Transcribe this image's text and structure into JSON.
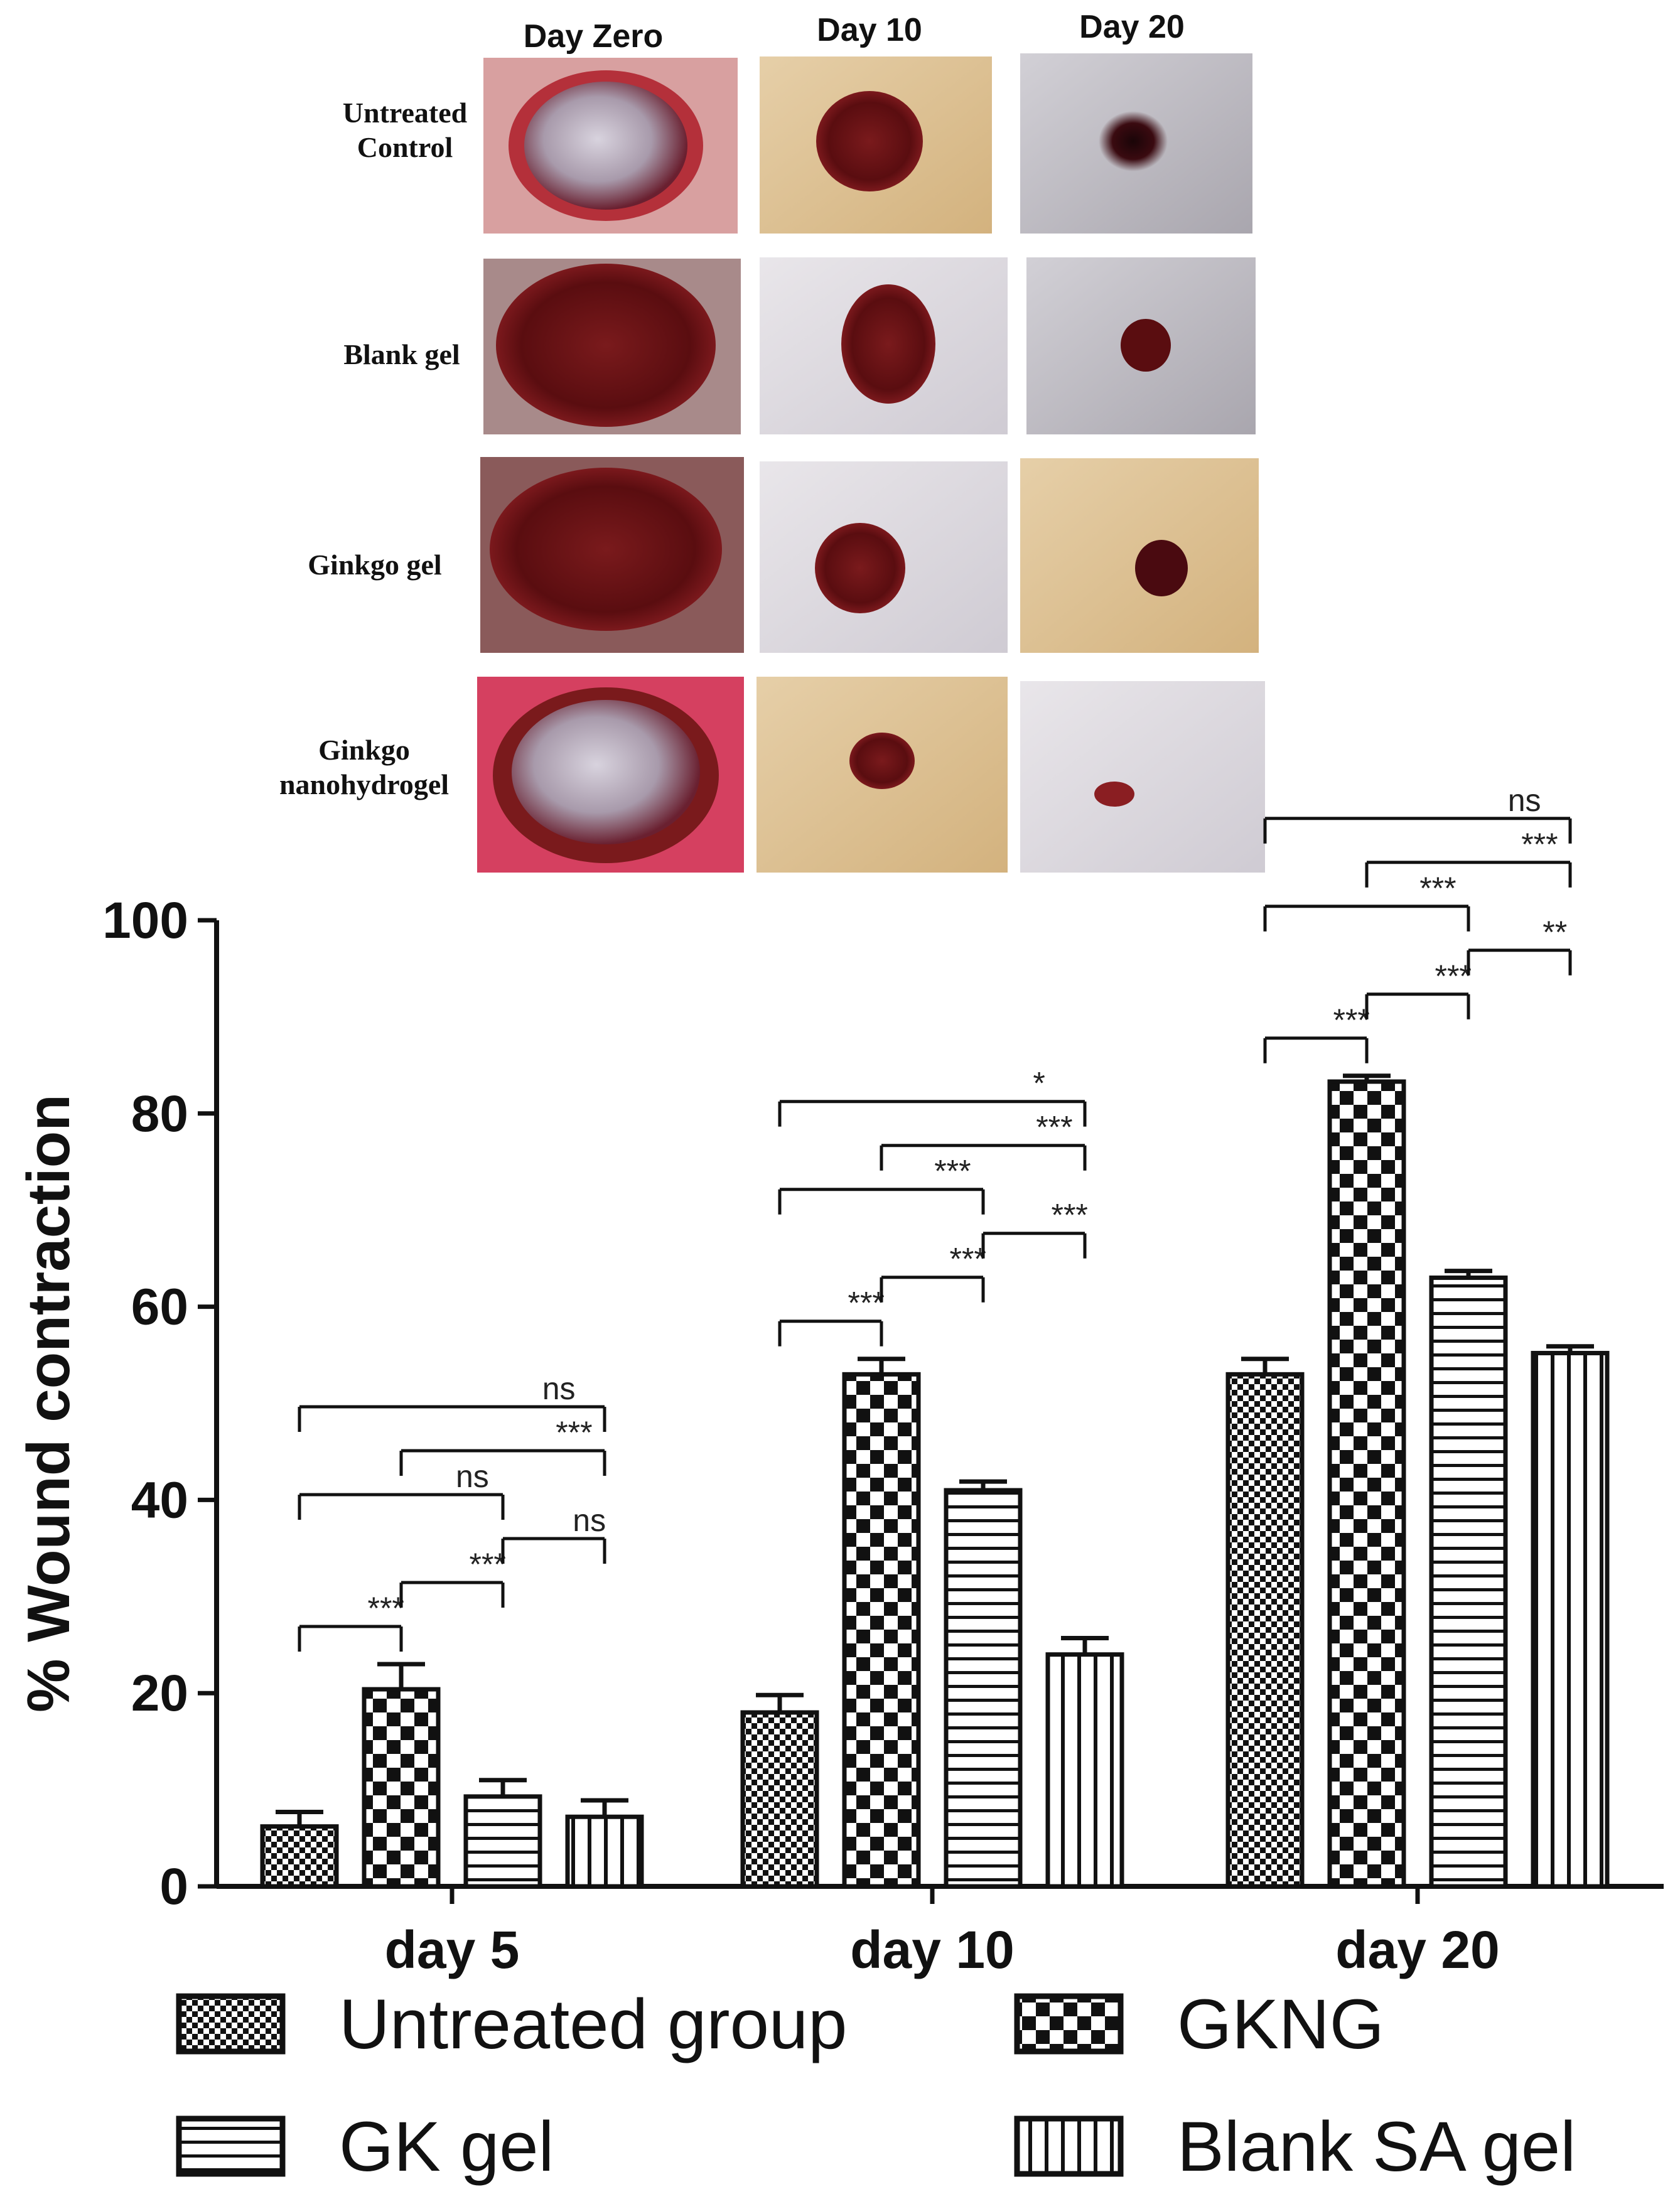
{
  "photo_panel": {
    "column_headers": [
      "Day Zero",
      "Day 10",
      "Day 20"
    ],
    "row_labels": [
      [
        "Untreated",
        "Control"
      ],
      [
        "Blank gel"
      ],
      [
        "Ginkgo gel"
      ],
      [
        "Ginkgo",
        "nanohydrogel"
      ]
    ]
  },
  "chart_data": {
    "type": "bar",
    "categories": [
      "day 5",
      "day 10",
      "day 20"
    ],
    "ylabel": "% Wound contraction",
    "xlabel": "",
    "ylim": [
      0,
      100
    ],
    "yticks": [
      0,
      20,
      40,
      60,
      80,
      100
    ],
    "series": [
      {
        "name": "Untreated group",
        "pattern": "fine-checker",
        "values": [
          6.2,
          18.0,
          53.0
        ],
        "errors": [
          1.5,
          1.8,
          1.6
        ]
      },
      {
        "name": "GKNG",
        "pattern": "large-checker",
        "values": [
          20.4,
          53.0,
          83.3
        ],
        "errors": [
          2.6,
          1.6,
          0.6
        ]
      },
      {
        "name": "GK gel",
        "pattern": "horizontal-stripes",
        "values": [
          9.3,
          41.0,
          63.0
        ],
        "errors": [
          1.7,
          0.9,
          0.7
        ]
      },
      {
        "name": "Blank SA gel",
        "pattern": "vertical-stripes",
        "values": [
          7.2,
          24.0,
          55.2
        ],
        "errors": [
          1.7,
          1.7,
          0.7
        ]
      }
    ],
    "legend": {
      "placement": "bottom",
      "entries": [
        "Untreated group",
        "GKNG",
        "GK gel",
        "Blank SA gel"
      ]
    },
    "significance": [
      {
        "category": "day 5",
        "from": "Untreated group",
        "to": "Blank SA gel",
        "label": "ns"
      },
      {
        "category": "day 5",
        "from": "Untreated group",
        "to": "GK gel",
        "label": "ns"
      },
      {
        "category": "day 5",
        "from": "GKNG",
        "to": "Blank SA gel",
        "label": "***"
      },
      {
        "category": "day 5",
        "from": "Untreated group",
        "to": "GKNG",
        "label": "***"
      },
      {
        "category": "day 5",
        "from": "GKNG",
        "to": "GK gel",
        "label": "***"
      },
      {
        "category": "day 5",
        "from": "GK gel",
        "to": "Blank SA gel",
        "label": "ns"
      },
      {
        "category": "day 10",
        "from": "Untreated group",
        "to": "Blank SA gel",
        "label": "*"
      },
      {
        "category": "day 10",
        "from": "Untreated group",
        "to": "GK gel",
        "label": "***"
      },
      {
        "category": "day 10",
        "from": "GKNG",
        "to": "Blank SA gel",
        "label": "***"
      },
      {
        "category": "day 10",
        "from": "Untreated group",
        "to": "GKNG",
        "label": "***"
      },
      {
        "category": "day 10",
        "from": "GKNG",
        "to": "GK gel",
        "label": "***"
      },
      {
        "category": "day 10",
        "from": "GK gel",
        "to": "Blank SA gel",
        "label": "***"
      },
      {
        "category": "day 20",
        "from": "Untreated group",
        "to": "Blank SA gel",
        "label": "ns"
      },
      {
        "category": "day 20",
        "from": "Untreated group",
        "to": "GK gel",
        "label": "***"
      },
      {
        "category": "day 20",
        "from": "Untreated group",
        "to": "GKNG",
        "label": "***"
      },
      {
        "category": "day 20",
        "from": "GKNG",
        "to": "Blank SA gel",
        "label": "***"
      },
      {
        "category": "day 20",
        "from": "GKNG",
        "to": "GK gel",
        "label": "***"
      },
      {
        "category": "day 20",
        "from": "GK gel",
        "to": "Blank SA gel",
        "label": "**"
      }
    ]
  }
}
